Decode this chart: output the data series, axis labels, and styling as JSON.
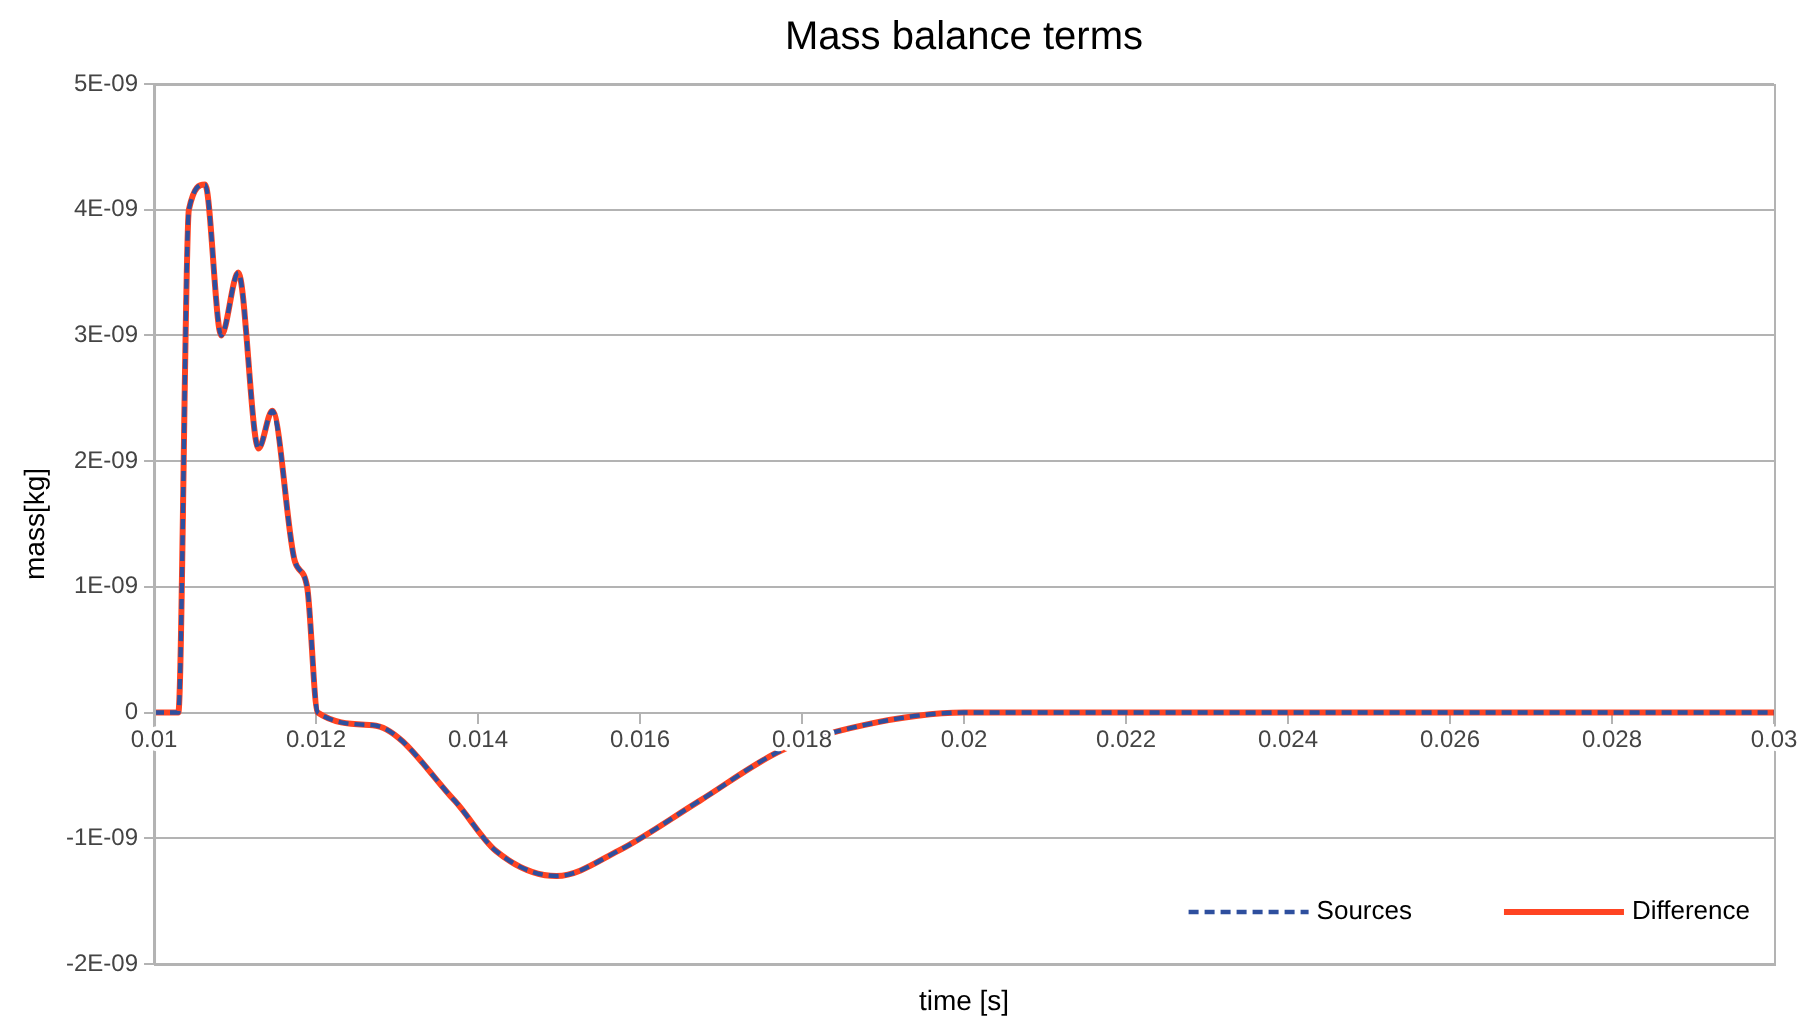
{
  "chart_data": {
    "type": "line",
    "title": "Mass balance terms",
    "xlabel": "time [s]",
    "ylabel": "mass[kg]",
    "x": [
      0.01,
      0.0103,
      0.01043,
      0.01063,
      0.01083,
      0.01104,
      0.01129,
      0.01146,
      0.01174,
      0.01189,
      0.01202,
      0.0127,
      0.01371,
      0.01422,
      0.01497,
      0.01573,
      0.01674,
      0.01775,
      0.01876,
      0.02,
      0.022,
      0.025,
      0.03
    ],
    "series": [
      {
        "name": "Sources",
        "color": "#2e4f9e",
        "line_style": "dashed",
        "values": [
          0,
          0,
          4e-09,
          4.2e-09,
          3e-09,
          3.5e-09,
          2.1e-09,
          2.4e-09,
          1.2e-09,
          1e-09,
          0,
          -1e-10,
          -7e-10,
          -1.1e-09,
          -1.3e-09,
          -1.1e-09,
          -7e-10,
          -3e-10,
          -1e-10,
          0,
          0,
          0,
          0
        ]
      },
      {
        "name": "Difference",
        "color": "#ff4422",
        "line_style": "solid",
        "values": [
          0,
          0,
          4e-09,
          4.2e-09,
          3e-09,
          3.5e-09,
          2.1e-09,
          2.4e-09,
          1.2e-09,
          1e-09,
          0,
          -1e-10,
          -7e-10,
          -1.1e-09,
          -1.3e-09,
          -1.1e-09,
          -7e-10,
          -3e-10,
          -1e-10,
          0,
          0,
          0,
          0
        ]
      }
    ],
    "xlim": [
      0.01,
      0.03
    ],
    "xticks": [
      0.01,
      0.012,
      0.014,
      0.016,
      0.018,
      0.02,
      0.022,
      0.024,
      0.026,
      0.028,
      0.03
    ],
    "ylim": [
      -2e-09,
      5e-09
    ],
    "yticks": [
      {
        "value": -2e-09,
        "label": "-2E-09"
      },
      {
        "value": -1e-09,
        "label": "-1E-09"
      },
      0,
      {
        "value": 1e-09,
        "label": "1E-09"
      },
      {
        "value": 2e-09,
        "label": "2E-09"
      },
      {
        "value": 3e-09,
        "label": "3E-09"
      },
      {
        "value": 4e-09,
        "label": "4E-09"
      },
      {
        "value": 5e-09,
        "label": "5E-09"
      }
    ],
    "grid": "y",
    "legend": "bottom right",
    "marker": "none"
  }
}
